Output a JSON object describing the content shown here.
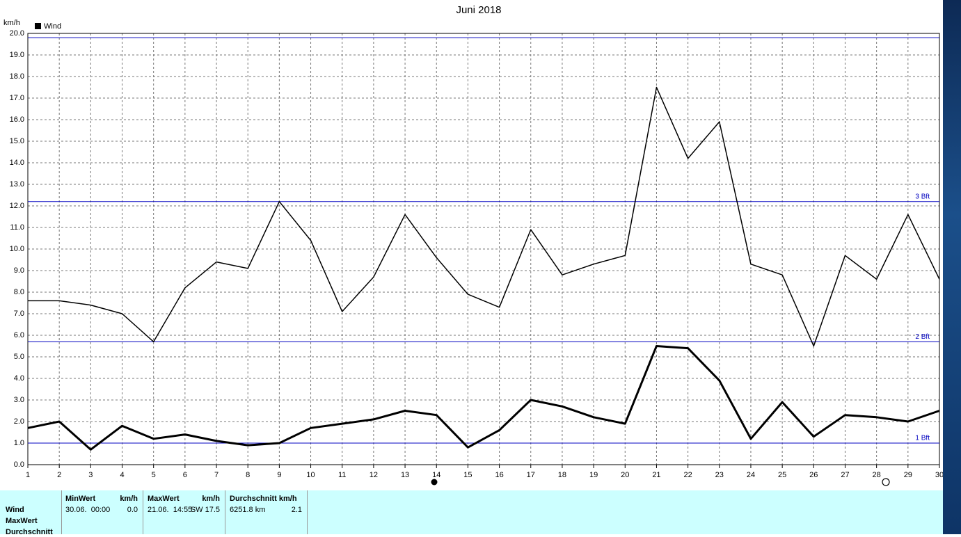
{
  "chart_data": {
    "type": "line",
    "title": "Juni 2018",
    "y_label": "km/h",
    "x": [
      1,
      2,
      3,
      4,
      5,
      6,
      7,
      8,
      9,
      10,
      11,
      12,
      13,
      14,
      15,
      16,
      17,
      18,
      19,
      20,
      21,
      22,
      23,
      24,
      25,
      26,
      27,
      28,
      29,
      30
    ],
    "xlim": [
      1,
      30
    ],
    "xticks": [
      1,
      2,
      3,
      4,
      5,
      6,
      7,
      8,
      9,
      10,
      11,
      12,
      13,
      14,
      15,
      16,
      17,
      18,
      19,
      20,
      21,
      22,
      23,
      24,
      25,
      26,
      27,
      28,
      29,
      30
    ],
    "ylim": [
      0,
      20
    ],
    "yticks": [
      {
        "value": 0,
        "label": "0.0"
      },
      {
        "value": 1,
        "label": "1.0"
      },
      {
        "value": 2,
        "label": "2.0"
      },
      {
        "value": 3,
        "label": "3.0"
      },
      {
        "value": 4,
        "label": "4.0"
      },
      {
        "value": 5,
        "label": "5.0"
      },
      {
        "value": 6,
        "label": "6.0"
      },
      {
        "value": 7,
        "label": "7.0"
      },
      {
        "value": 8,
        "label": "8.0"
      },
      {
        "value": 9,
        "label": "9.0"
      },
      {
        "value": 10,
        "label": "10.0"
      },
      {
        "value": 11,
        "label": "11.0"
      },
      {
        "value": 12,
        "label": "12.0"
      },
      {
        "value": 13,
        "label": "13.0"
      },
      {
        "value": 14,
        "label": "14.0"
      },
      {
        "value": 15,
        "label": "15.0"
      },
      {
        "value": 16,
        "label": "16.0"
      },
      {
        "value": 17,
        "label": "17.0"
      },
      {
        "value": 18,
        "label": "18.0"
      },
      {
        "value": 19,
        "label": "19.0"
      },
      {
        "value": 20,
        "label": "20.0"
      }
    ],
    "grid": true,
    "series": [
      {
        "name": "Wind",
        "color": "#000000",
        "width": 3,
        "values": [
          1.7,
          2.0,
          0.7,
          1.8,
          1.2,
          1.4,
          1.1,
          0.9,
          1.0,
          1.7,
          1.9,
          2.1,
          2.5,
          2.3,
          0.8,
          1.6,
          3.0,
          2.7,
          2.2,
          1.9,
          5.5,
          5.4,
          3.9,
          1.2,
          2.9,
          1.3,
          2.3,
          2.2,
          2.0,
          2.5
        ]
      },
      {
        "color": "#000000",
        "width": 1.5,
        "values": [
          7.6,
          7.6,
          7.4,
          7.0,
          5.7,
          8.2,
          9.4,
          9.1,
          12.2,
          10.4,
          7.1,
          8.7,
          11.6,
          9.6,
          7.9,
          7.3,
          10.9,
          8.8,
          9.3,
          9.7,
          17.5,
          14.2,
          15.9,
          9.3,
          8.8,
          5.5,
          9.7,
          8.6,
          11.6,
          8.6
        ]
      }
    ],
    "reference_lines": [
      {
        "value": 1.0,
        "label": "1 Bft"
      },
      {
        "value": 5.7,
        "label": "2 Bft"
      },
      {
        "value": 12.2,
        "label": "3 Bft"
      },
      {
        "value": 19.8
      }
    ],
    "reference_color": "#0000c0"
  },
  "table": {
    "columns": [
      "MinWert",
      "km/h",
      "MaxWert",
      "km/h",
      "Durchschnitt km/h"
    ],
    "rows": [
      {
        "label": "Wind",
        "cells": [
          "30.06.  00:00",
          "0.0",
          "21.06.  14:55",
          "SW 17.5",
          "6251.8 km",
          "2.1"
        ]
      },
      {
        "label": "MaxWert"
      },
      {
        "label": "Durchschnitt"
      }
    ]
  }
}
